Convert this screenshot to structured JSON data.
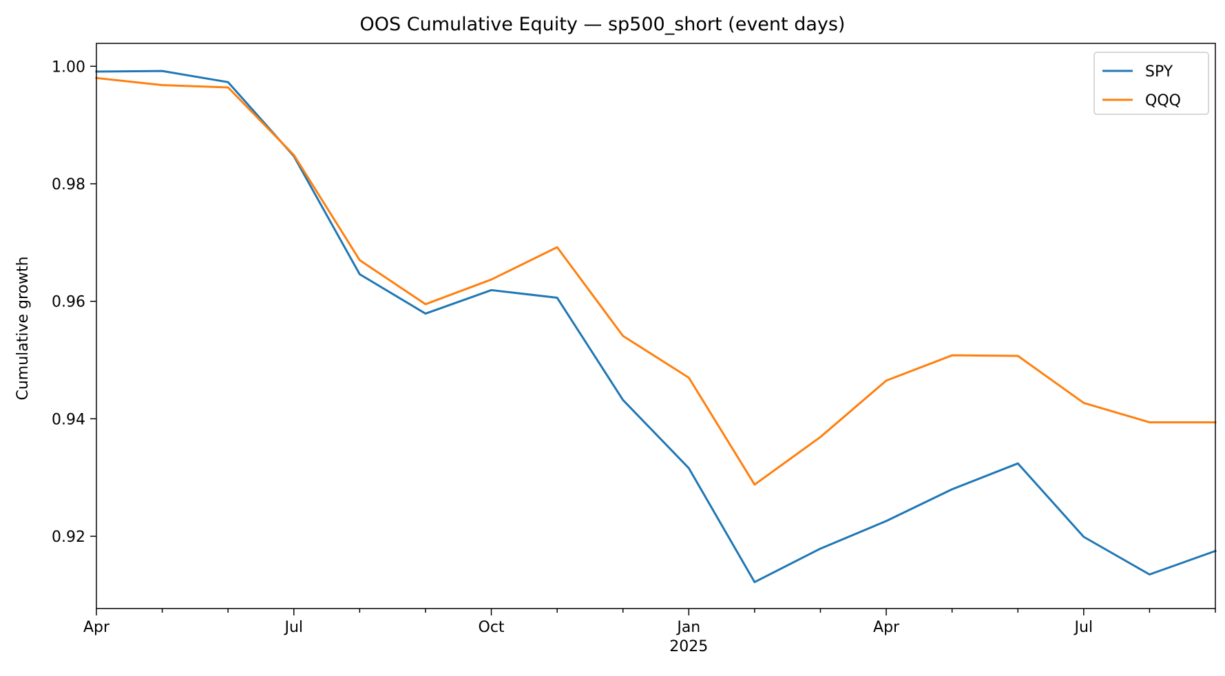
{
  "chart_data": {
    "type": "line",
    "title": "OOS Cumulative Equity — sp500_short (event days)",
    "xlabel": "",
    "ylabel": "Cumulative growth",
    "x": [
      "2024-04",
      "2024-05",
      "2024-06",
      "2024-07",
      "2024-08",
      "2024-09",
      "2024-10",
      "2024-11",
      "2024-12",
      "2025-01",
      "2025-02",
      "2025-03",
      "2025-04",
      "2025-05",
      "2025-06",
      "2025-07",
      "2025-08",
      "2025-09"
    ],
    "x_tick_labels": [
      {
        "x": "2024-04",
        "label": "Apr",
        "sublabel": ""
      },
      {
        "x": "2024-07",
        "label": "Jul",
        "sublabel": ""
      },
      {
        "x": "2024-10",
        "label": "Oct",
        "sublabel": ""
      },
      {
        "x": "2025-01",
        "label": "Jan",
        "sublabel": "2025"
      },
      {
        "x": "2025-04",
        "label": "Apr",
        "sublabel": ""
      },
      {
        "x": "2025-07",
        "label": "Jul",
        "sublabel": ""
      }
    ],
    "y_ticks": [
      0.92,
      0.94,
      0.96,
      0.98,
      1.0
    ],
    "y_tick_labels": [
      "0.92",
      "0.94",
      "0.96",
      "0.98",
      "1.00"
    ],
    "ylim": [
      0.9077,
      1.0039
    ],
    "xlim": [
      "2024-04",
      "2025-09"
    ],
    "grid": false,
    "legend": "top-right",
    "series": [
      {
        "name": "SPY",
        "color": "#1f77b4",
        "values": [
          0.9991,
          0.9992,
          0.9973,
          0.9847,
          0.9646,
          0.9579,
          0.9619,
          0.9606,
          0.9432,
          0.9316,
          0.9122,
          0.9179,
          0.9226,
          0.928,
          0.9324,
          0.9199,
          0.9135,
          0.9175
        ]
      },
      {
        "name": "QQQ",
        "color": "#ff7f0e",
        "values": [
          0.998,
          0.9968,
          0.9964,
          0.9849,
          0.967,
          0.9595,
          0.9637,
          0.9692,
          0.9541,
          0.947,
          0.9288,
          0.9369,
          0.9465,
          0.9508,
          0.9507,
          0.9427,
          0.9394,
          0.9394
        ]
      }
    ]
  }
}
